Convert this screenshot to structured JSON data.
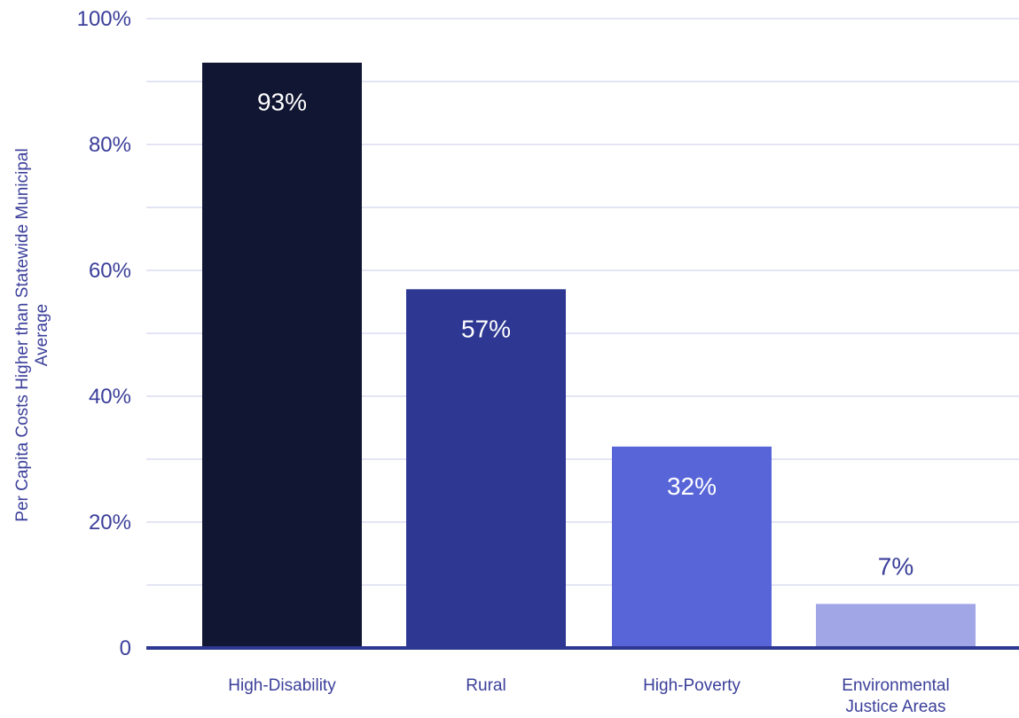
{
  "chart_data": {
    "type": "bar",
    "title": "",
    "xlabel": "",
    "ylabel": "Per Capita Costs Higher than Statewide Municipal Average",
    "categories": [
      "High-Disability",
      "Rural",
      "High-Poverty",
      "Environmental Justice Areas"
    ],
    "category_lines": [
      [
        "High-Disability"
      ],
      [
        "Rural"
      ],
      [
        "High-Poverty"
      ],
      [
        "Environmental",
        "Justice Areas"
      ]
    ],
    "values": [
      93,
      57,
      32,
      7
    ],
    "data_labels": [
      "93%",
      "57%",
      "32%",
      "7%"
    ],
    "ylim": [
      0,
      100
    ],
    "yticks": [
      0,
      20,
      40,
      60,
      80,
      100
    ],
    "ytick_labels": [
      "0",
      "20%",
      "40%",
      "60%",
      "80%",
      "100%"
    ],
    "minor_gridlines": [
      10,
      30,
      50,
      70,
      90
    ],
    "grid": true,
    "legend": "none",
    "colors": {
      "bars": [
        "#111633",
        "#2e3892",
        "#5865d8",
        "#a1a6e6"
      ],
      "data_label_inside": "#ffffff",
      "data_label_outside": "#3b3f9a",
      "axis_text": "#3b3f9a",
      "gridline": "#c8cbe9",
      "baseline": "#2e3892"
    }
  }
}
